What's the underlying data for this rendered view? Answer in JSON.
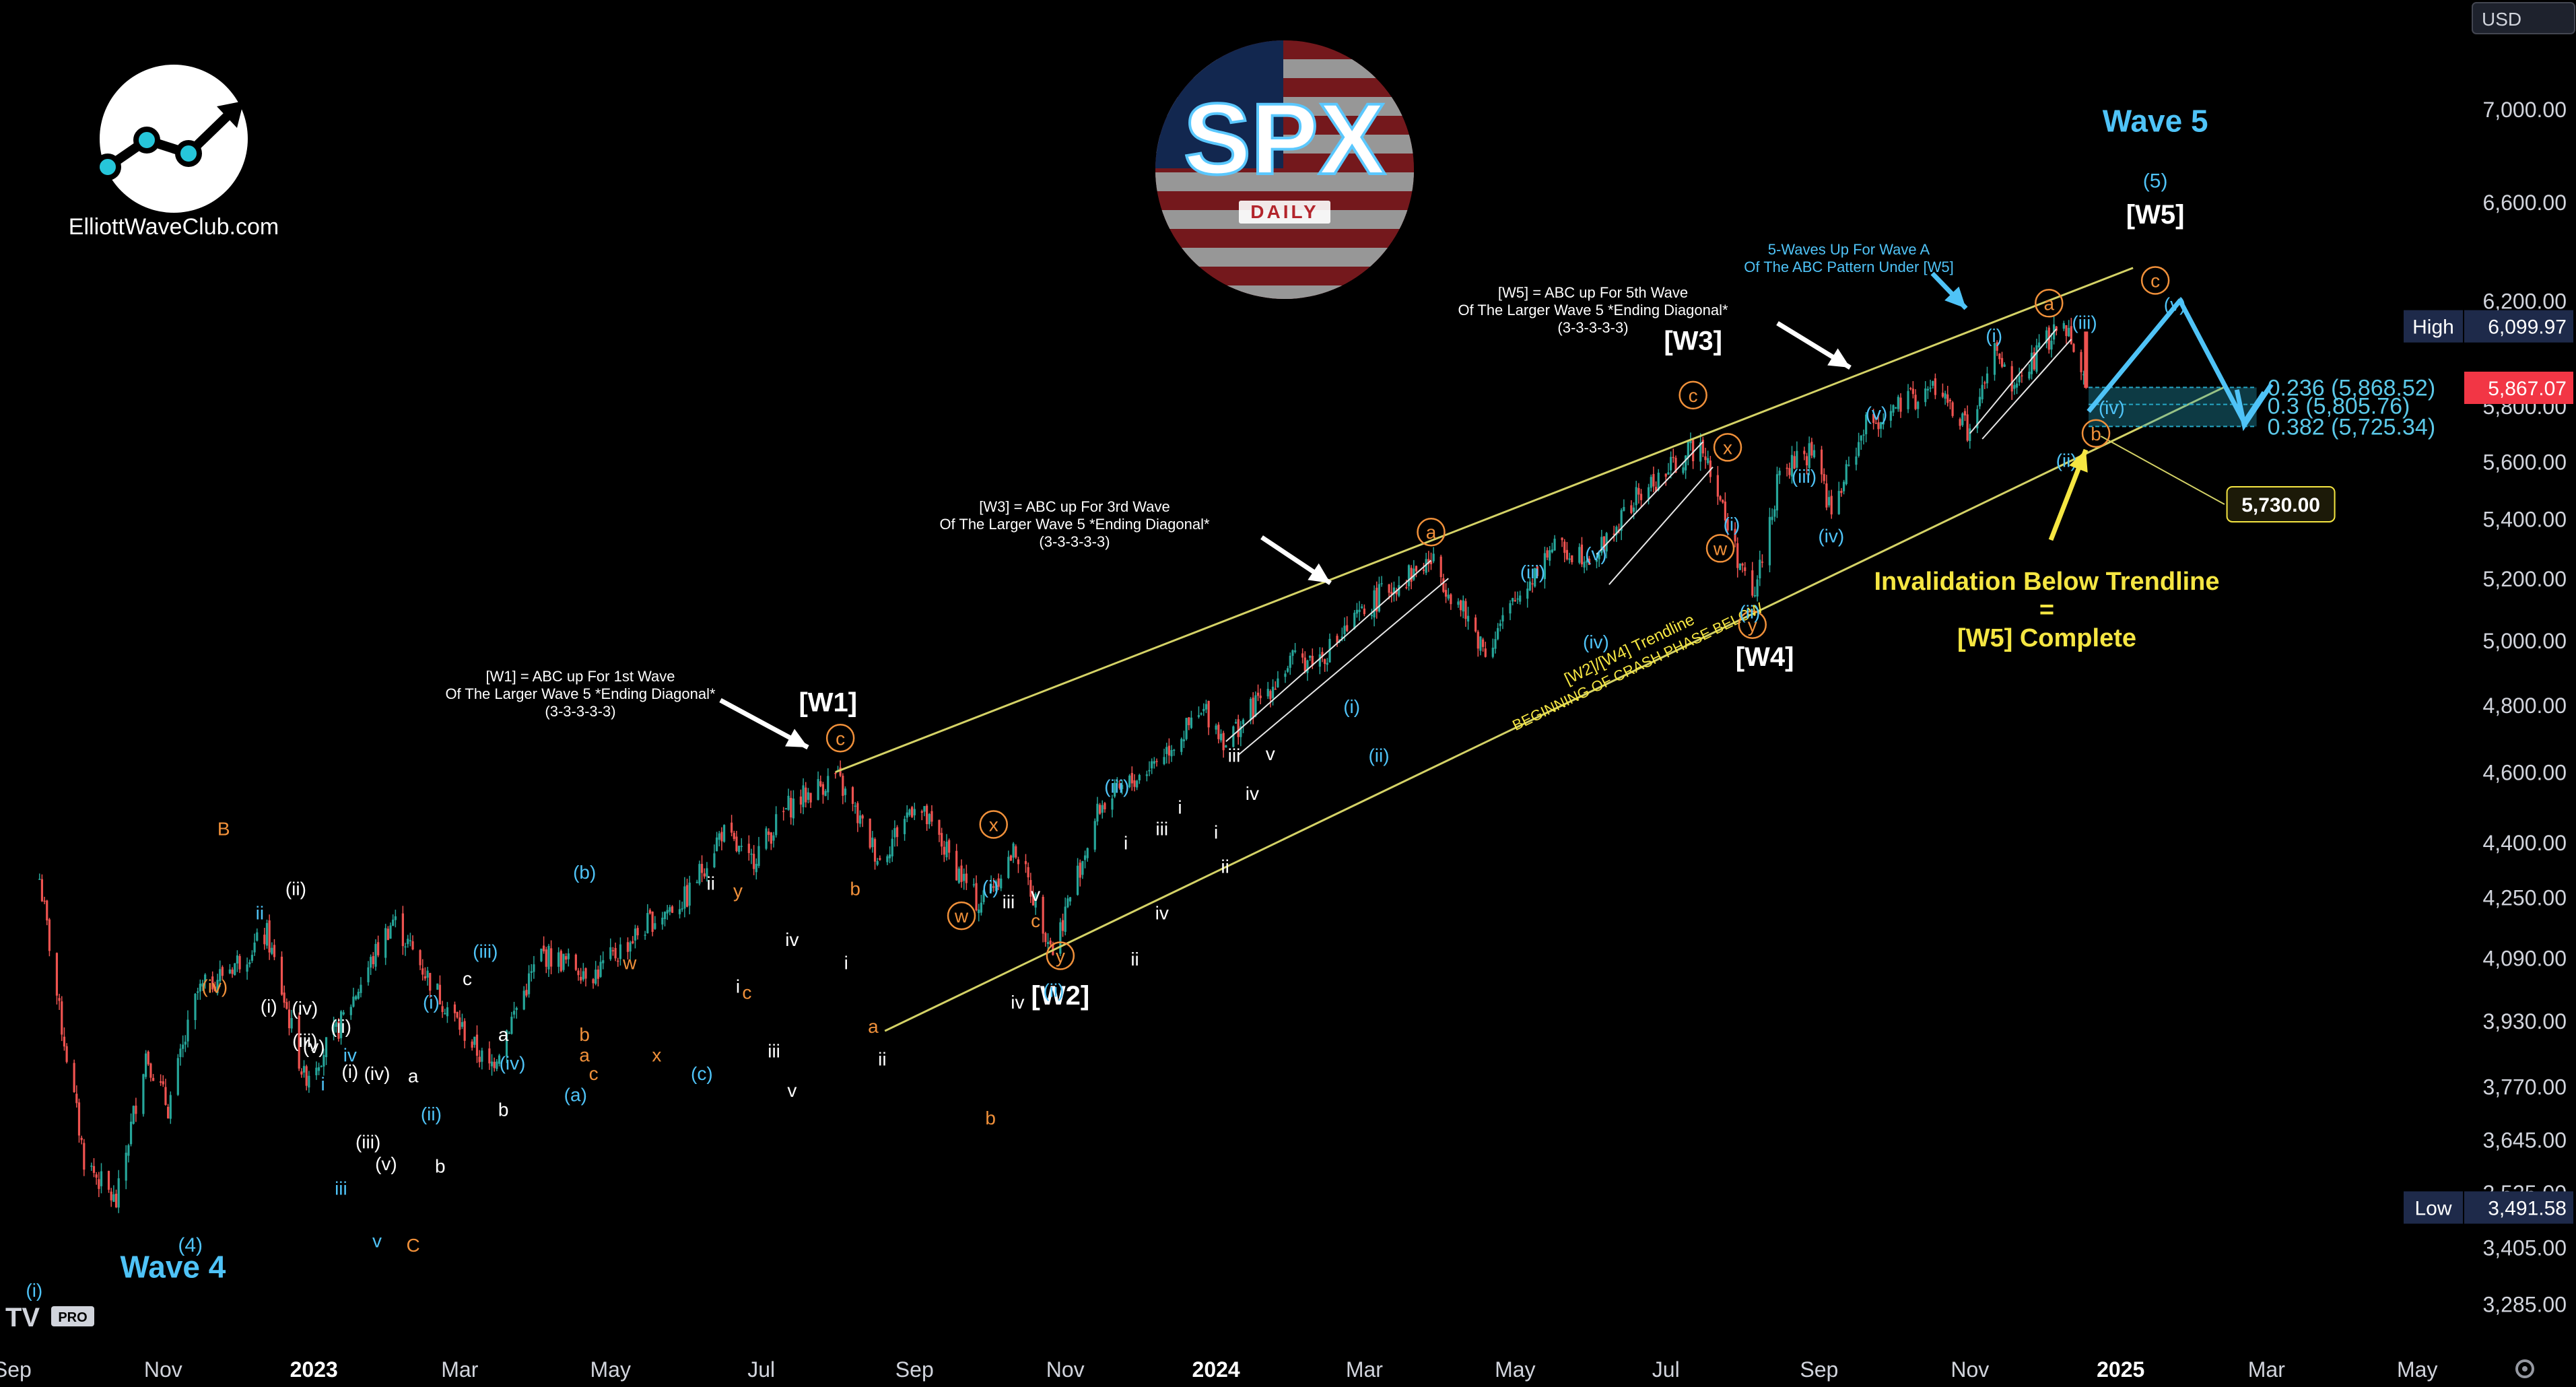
{
  "chart_data": {
    "type": "candlestick",
    "title": "SPX",
    "subtitle": "DAILY",
    "currency": "USD",
    "y_axis": {
      "scale": "log",
      "ylim": [
        3200,
        7500
      ],
      "ticks": [
        "7,000.00",
        "6,600.00",
        "6,200.00",
        "5,800.00",
        "5,600.00",
        "5,400.00",
        "5,200.00",
        "5,000.00",
        "4,800.00",
        "4,600.00",
        "4,400.00",
        "4,250.00",
        "4,090.00",
        "3,930.00",
        "3,770.00",
        "3,645.00",
        "3,525.00",
        "3,405.00",
        "3,285.00"
      ],
      "tick_values": [
        7000,
        6600,
        6200,
        5800,
        5600,
        5400,
        5200,
        5000,
        4800,
        4600,
        4400,
        4250,
        4090,
        3930,
        3770,
        3645,
        3525,
        3405,
        3285
      ],
      "high": {
        "label": "High",
        "value": "6,099.97"
      },
      "low": {
        "label": "Low",
        "value": "3,491.58"
      },
      "last": {
        "value": "5,867.07",
        "color": "#f23645"
      }
    },
    "x_axis": {
      "xlim": [
        "2022-08-27",
        "2025-05-20"
      ],
      "ticks": [
        {
          "label": "Sep",
          "date": "2022-09-01",
          "bold": false
        },
        {
          "label": "Nov",
          "date": "2022-11-01",
          "bold": false
        },
        {
          "label": "2023",
          "date": "2023-01-01",
          "bold": true
        },
        {
          "label": "Mar",
          "date": "2023-03-01",
          "bold": false
        },
        {
          "label": "May",
          "date": "2023-05-01",
          "bold": false
        },
        {
          "label": "Jul",
          "date": "2023-07-01",
          "bold": false
        },
        {
          "label": "Sep",
          "date": "2023-09-01",
          "bold": false
        },
        {
          "label": "Nov",
          "date": "2023-11-01",
          "bold": false
        },
        {
          "label": "2024",
          "date": "2024-01-01",
          "bold": true
        },
        {
          "label": "Mar",
          "date": "2024-03-01",
          "bold": false
        },
        {
          "label": "May",
          "date": "2024-05-01",
          "bold": false
        },
        {
          "label": "Jul",
          "date": "2024-07-01",
          "bold": false
        },
        {
          "label": "Sep",
          "date": "2024-09-01",
          "bold": false
        },
        {
          "label": "Nov",
          "date": "2024-11-01",
          "bold": false
        },
        {
          "label": "2025",
          "date": "2025-01-01",
          "bold": true
        },
        {
          "label": "Mar",
          "date": "2025-03-01",
          "bold": false
        },
        {
          "label": "May",
          "date": "2025-05-01",
          "bold": false
        }
      ]
    },
    "price_path": [
      [
        "2022-09-12",
        4300
      ],
      [
        "2022-09-20",
        3950
      ],
      [
        "2022-09-30",
        3600
      ],
      [
        "2022-10-13",
        3500
      ],
      [
        "2022-10-25",
        3850
      ],
      [
        "2022-11-03",
        3720
      ],
      [
        "2022-11-15",
        4000
      ],
      [
        "2022-12-01",
        4080
      ],
      [
        "2022-12-13",
        4150
      ],
      [
        "2022-12-28",
        3790
      ],
      [
        "2023-01-10",
        3900
      ],
      [
        "2023-02-02",
        4190
      ],
      [
        "2023-02-20",
        4000
      ],
      [
        "2023-03-13",
        3810
      ],
      [
        "2023-04-03",
        4100
      ],
      [
        "2023-04-25",
        4050
      ],
      [
        "2023-05-18",
        4190
      ],
      [
        "2023-06-01",
        4250
      ],
      [
        "2023-06-15",
        4430
      ],
      [
        "2023-06-26",
        4340
      ],
      [
        "2023-07-12",
        4500
      ],
      [
        "2023-07-31",
        4590
      ],
      [
        "2023-08-18",
        4350
      ],
      [
        "2023-09-01",
        4515
      ],
      [
        "2023-09-27",
        4230
      ],
      [
        "2023-10-12",
        4380
      ],
      [
        "2023-10-27",
        4110
      ],
      [
        "2023-11-15",
        4500
      ],
      [
        "2023-12-01",
        4590
      ],
      [
        "2023-12-28",
        4780
      ],
      [
        "2024-01-05",
        4690
      ],
      [
        "2024-01-31",
        4930
      ],
      [
        "2024-02-13",
        4950
      ],
      [
        "2024-03-08",
        5150
      ],
      [
        "2024-03-28",
        5260
      ],
      [
        "2024-04-19",
        4970
      ],
      [
        "2024-05-15",
        5300
      ],
      [
        "2024-06-03",
        5280
      ],
      [
        "2024-06-20",
        5480
      ],
      [
        "2024-07-16",
        5670
      ],
      [
        "2024-07-25",
        5400
      ],
      [
        "2024-08-05",
        5120
      ],
      [
        "2024-08-16",
        5550
      ],
      [
        "2024-08-30",
        5650
      ],
      [
        "2024-09-06",
        5410
      ],
      [
        "2024-09-19",
        5720
      ],
      [
        "2024-10-18",
        5870
      ],
      [
        "2024-11-01",
        5700
      ],
      [
        "2024-11-11",
        6000
      ],
      [
        "2024-11-18",
        5860
      ],
      [
        "2024-12-06",
        6090
      ],
      [
        "2024-12-12",
        6080
      ],
      [
        "2024-12-18",
        5870
      ]
    ],
    "trendlines": {
      "upper": [
        [
          "2023-07-31",
          4600
        ],
        [
          "2025-01-06",
          6330
        ]
      ],
      "lower": [
        [
          "2023-09-01",
          3940
        ],
        [
          "2025-02-12",
          5870
        ]
      ],
      "lower_label": "[W2]/[W4] Trendline",
      "lower_sublabel": "BEGINNING OF CRASH PHASE BELOW"
    },
    "fib_levels": [
      {
        "label": "0.236 (5,868.52)",
        "value": 5868.52
      },
      {
        "label": "0.3 (5,805.76)",
        "value": 5805.76
      },
      {
        "label": "0.382 (5,725.34)",
        "value": 5725.34
      }
    ],
    "target_label": "5,730.00",
    "wave_labels": {
      "W1": "[W1]",
      "W2": "[W2]",
      "W3": "[W3]",
      "W4": "[W4]",
      "W5": "[W5]",
      "wave4": "Wave 4",
      "wave5": "Wave 5",
      "wave4_sub": "(4)",
      "wave5_sub": "(5)",
      "w2_y": "y",
      "w2_x": "x",
      "w2_w": "w",
      "w1_c": "c",
      "w3_c": "c",
      "w3_a": "a",
      "w4_y": "y",
      "w4_x": "x",
      "w4_w": "w",
      "w5_a": "a",
      "w5_b": "b",
      "w5_c": "c"
    },
    "annotations": {
      "w1_note": [
        "[W1] = ABC up For 1st Wave",
        "Of The Larger Wave 5 *Ending Diagonal*",
        "(3-3-3-3-3)"
      ],
      "w3_note": [
        "[W3] = ABC up For 3rd Wave",
        "Of The Larger Wave 5 *Ending Diagonal*",
        "(3-3-3-3-3)"
      ],
      "w5_note": [
        "[W5] = ABC up For 5th Wave",
        "Of The Larger Wave 5 *Ending Diagonal*",
        "(3-3-3-3-3)"
      ],
      "w5a_note": [
        "5-Waves Up For Wave A",
        "Of The ABC Pattern Under [W5]"
      ],
      "invalidation": [
        "Invalidation Below Trendline",
        "=",
        "[W5] Complete"
      ]
    },
    "small_labels": {
      "white": [
        [
          "(ii)",
          2022.98,
          4255
        ],
        [
          "(i)",
          2022.95,
          3950
        ],
        [
          "(iv)",
          2022.99,
          3945
        ],
        [
          "(ii)",
          2023.03,
          3900
        ],
        [
          "(iii)",
          2022.99,
          3865
        ],
        [
          "(v)",
          2023.0,
          3850
        ],
        [
          "(i)",
          2023.04,
          3790
        ],
        [
          "(iv)",
          2023.07,
          3785
        ],
        [
          "a",
          2023.11,
          3780
        ],
        [
          "b",
          2023.14,
          3570
        ],
        [
          "(iii)",
          2023.06,
          3625
        ],
        [
          "(v)",
          2023.08,
          3575
        ],
        [
          "c",
          2023.17,
          4020
        ],
        [
          "a",
          2023.21,
          3880
        ],
        [
          "b",
          2023.21,
          3700
        ],
        [
          "ii",
          2023.44,
          4270
        ],
        [
          "i",
          2023.47,
          4000
        ],
        [
          "iv",
          2023.53,
          4120
        ],
        [
          "i",
          2023.59,
          4060
        ],
        [
          "iii",
          2023.51,
          3840
        ],
        [
          "ii",
          2023.63,
          3820
        ],
        [
          "v",
          2023.53,
          3745
        ],
        [
          "iii",
          2023.77,
          4220
        ],
        [
          "v",
          2023.8,
          4240
        ],
        [
          "iv",
          2023.78,
          3960
        ],
        [
          "i",
          2023.9,
          4380
        ],
        [
          "iii",
          2023.94,
          4420
        ],
        [
          "ii",
          2023.91,
          4070
        ],
        [
          "iv",
          2023.94,
          4190
        ],
        [
          "i",
          2023.96,
          4480
        ],
        [
          "ii",
          2024.01,
          4315
        ],
        [
          "iii",
          2024.02,
          4630
        ],
        [
          "iv",
          2024.04,
          4520
        ],
        [
          "v",
          2024.06,
          4635
        ],
        [
          "i",
          2024.0,
          4410
        ]
      ],
      "cyan": [
        [
          "ii",
          2022.94,
          4190
        ],
        [
          "iv",
          2023.04,
          3830
        ],
        [
          "i",
          2023.01,
          3760
        ],
        [
          "iii",
          2023.03,
          3520
        ],
        [
          "(i)",
          2023.13,
          3960
        ],
        [
          "(iii)",
          2023.19,
          4090
        ],
        [
          "(ii)",
          2023.13,
          3690
        ],
        [
          "(iv)",
          2023.22,
          3810
        ],
        [
          "(b)",
          2023.3,
          4300
        ],
        [
          "(c)",
          2023.43,
          3785
        ],
        [
          "(a)",
          2023.29,
          3735
        ],
        [
          "(i)",
          2023.75,
          4260
        ],
        [
          "(ii)",
          2023.82,
          3990
        ],
        [
          "(iii)",
          2023.89,
          4540
        ],
        [
          "(i)",
          2024.15,
          4775
        ],
        [
          "(ii)",
          2024.18,
          4630
        ],
        [
          "(iii)",
          2024.35,
          5200
        ],
        [
          "(iv)",
          2024.42,
          4975
        ],
        [
          "(v)",
          2024.42,
          5260
        ],
        [
          "(i)",
          2024.57,
          5360
        ],
        [
          "(ii)",
          2024.59,
          5070
        ],
        [
          "(iii)",
          2024.65,
          5525
        ],
        [
          "(iv)",
          2024.68,
          5320
        ],
        [
          "(v)",
          2024.73,
          5750
        ],
        [
          "(i)",
          2024.86,
          6040
        ],
        [
          "(ii)",
          2024.94,
          5580
        ],
        [
          "(iii)",
          2024.96,
          6090
        ],
        [
          "(iv)",
          2024.99,
          5770
        ],
        [
          "(v)",
          2025.06,
          6160
        ],
        [
          "(i)",
          2022.69,
          3300
        ],
        [
          "v",
          2023.07,
          3405
        ]
      ],
      "orange": [
        [
          "B",
          2022.9,
          4420
        ],
        [
          "(iv)",
          2022.89,
          4000
        ],
        [
          "C",
          2023.11,
          3395
        ],
        [
          "a",
          2023.3,
          3830
        ],
        [
          "b",
          2023.3,
          3880
        ],
        [
          "c",
          2023.31,
          3785
        ],
        [
          "w",
          2023.35,
          4060
        ],
        [
          "x",
          2023.38,
          3830
        ],
        [
          "y",
          2023.47,
          4250
        ],
        [
          "c",
          2023.48,
          3985
        ],
        [
          "a",
          2023.62,
          3900
        ],
        [
          "b",
          2023.6,
          4255
        ],
        [
          "c",
          2023.8,
          4170
        ],
        [
          "b",
          2023.75,
          3680
        ]
      ]
    }
  },
  "header": {
    "currency_badge": "USD"
  },
  "branding": {
    "site": "ElliottWaveClub.com",
    "tv_badge": "PRO"
  },
  "colors": {
    "up": "#26a69a",
    "down": "#ef5350",
    "trendline": "#d4d266",
    "cyan": "#4fc3f7",
    "orange": "#f0903a",
    "yellow": "#f5e642",
    "fib_zone": "#26a6c4",
    "white_line": "#e6e6e6"
  }
}
